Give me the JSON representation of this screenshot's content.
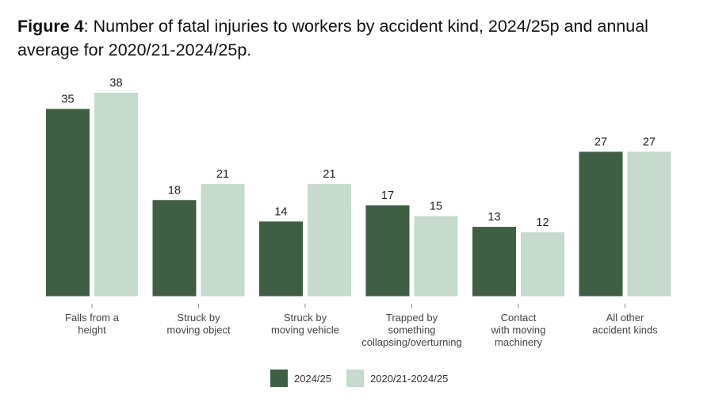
{
  "title": {
    "label": "Figure 4",
    "text": ": Number of fatal injuries to workers by accident kind, 2024/25p and annual average for 2020/21-2024/25p."
  },
  "chart_data": {
    "type": "bar",
    "title": "Figure 4: Number of fatal injuries to workers by accident kind, 2024/25p and annual average for 2020/21-2024/25p.",
    "categories": [
      [
        "Falls from a",
        "height"
      ],
      [
        "Struck by",
        "moving object"
      ],
      [
        "Struck by",
        "moving vehicle"
      ],
      [
        "Trapped by",
        "something",
        "collapsing/overturning"
      ],
      [
        "Contact",
        "with moving",
        "machinery"
      ],
      [
        "All other",
        "accident kinds"
      ]
    ],
    "series": [
      {
        "name": "2024/25",
        "color": "#3f5f45",
        "values": [
          35,
          18,
          14,
          17,
          13,
          27
        ]
      },
      {
        "name": "2020/21-2024/25",
        "color": "#c6dace",
        "values": [
          38,
          21,
          21,
          15,
          12,
          27
        ]
      }
    ],
    "xlabel": "",
    "ylabel": "",
    "ylim": [
      0,
      38
    ],
    "grid": false,
    "legend_position": "bottom-center"
  }
}
